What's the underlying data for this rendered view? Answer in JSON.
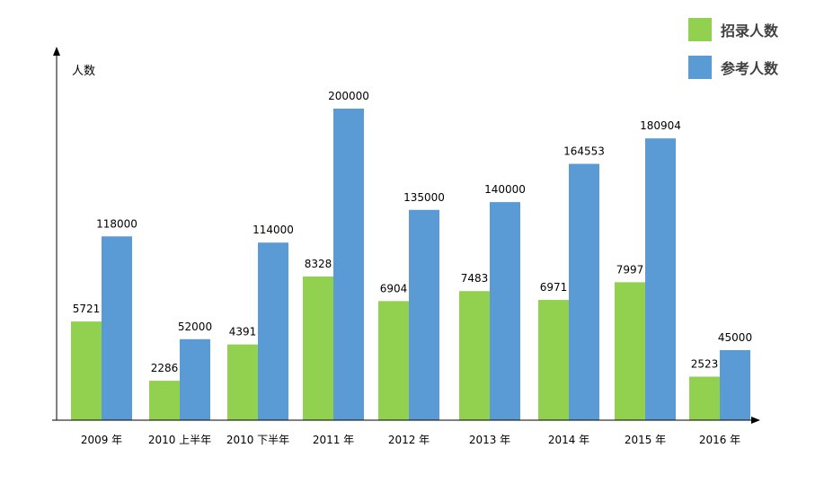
{
  "colors": {
    "recruited": "#92d050",
    "applicants": "#5b9bd5",
    "axis": "#000000",
    "label": "#000000"
  },
  "legend": {
    "items": [
      {
        "label": "招录人数",
        "color": "#92d050"
      },
      {
        "label": "参考人数",
        "color": "#5b9bd5"
      }
    ]
  },
  "chart_data": {
    "type": "bar",
    "ylabel": "人数",
    "categories": [
      "2009 年",
      "2010 上半年",
      "2010 下半年",
      "2011 年",
      "2012 年",
      "2013 年",
      "2014 年",
      "2015 年",
      "2016 年"
    ],
    "series": [
      {
        "name": "招录人数",
        "values": [
          5721,
          2286,
          4391,
          8328,
          6904,
          7483,
          6971,
          7997,
          2523
        ]
      },
      {
        "name": "参考人数",
        "values": [
          118000,
          52000,
          114000,
          200000,
          135000,
          140000,
          164553,
          180904,
          45000
        ]
      }
    ],
    "data_labels": [
      [
        "5721",
        "2286",
        "4391",
        "8328",
        "6904",
        "7483",
        "6971",
        "7997",
        "2523"
      ],
      [
        "118000",
        "52000",
        "114000",
        "200000",
        "135000",
        "140000",
        "164553",
        "180904",
        "45000"
      ]
    ],
    "legend_position": "top-right",
    "grid": false
  }
}
